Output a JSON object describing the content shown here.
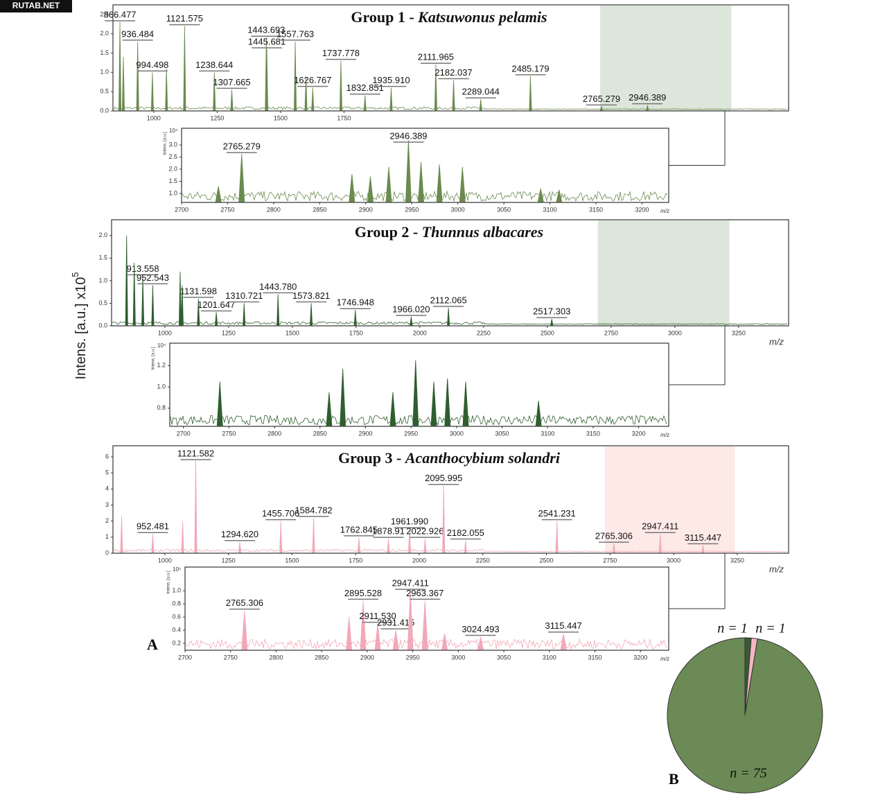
{
  "watermark": "RUTAB.NET",
  "y_axis_label": {
    "text": "Intens. [a.u.] x10",
    "exponent": "5"
  },
  "panel_label_a": "A",
  "panel_label_b": "B",
  "panels": [
    {
      "title": "Group 1 - ",
      "species": "Katsuwonus pelamis",
      "color": "#6b8a4e",
      "main": {
        "xlim": [
          839,
          3503
        ],
        "ylim": [
          0,
          2.75
        ],
        "xticks": [
          1000,
          1250,
          1500,
          1750
        ],
        "yticks": [
          {
            "value": 0,
            "label": "0.0"
          },
          {
            "value": 0.5,
            "label": "0.5"
          },
          {
            "value": 1,
            "label": "1.0"
          },
          {
            "value": 1.5,
            "label": "1.5"
          },
          {
            "value": 2,
            "label": "2.0"
          },
          {
            "value": 2.5,
            "label": "2.5"
          }
        ],
        "shade": [
          2760,
          3277
        ],
        "shade_color": "#dde6da",
        "peaks": [
          {
            "mz": 866.477,
            "label": "866.477",
            "h": 2.3
          },
          {
            "mz": 936.484,
            "label": "936.484",
            "h": 1.8
          },
          {
            "mz": 994.498,
            "label": "994.498",
            "h": 1.0
          },
          {
            "mz": 1121.575,
            "label": "1121.575",
            "h": 2.2
          },
          {
            "mz": 1238.644,
            "label": "1238.644",
            "h": 1.0
          },
          {
            "mz": 1307.665,
            "label": "1307.665",
            "h": 0.55
          },
          {
            "mz": 1443.693,
            "label": "1443.693",
            "h": 1.9
          },
          {
            "mz": 1445.681,
            "label": "1445.681",
            "h": 1.6
          },
          {
            "mz": 1557.763,
            "label": "1557.763",
            "h": 1.8
          },
          {
            "mz": 1626.767,
            "label": "1626.767",
            "h": 0.6
          },
          {
            "mz": 1737.778,
            "label": "1737.778",
            "h": 1.3
          },
          {
            "mz": 1832.851,
            "label": "1832.851",
            "h": 0.4
          },
          {
            "mz": 1935.91,
            "label": "1935.910",
            "h": 0.6
          },
          {
            "mz": 2111.965,
            "label": "2111.965",
            "h": 1.2
          },
          {
            "mz": 2182.037,
            "label": "2182.037",
            "h": 0.8
          },
          {
            "mz": 2289.044,
            "label": "2289.044",
            "h": 0.3
          },
          {
            "mz": 2485.179,
            "label": "2485.179",
            "h": 0.9
          },
          {
            "mz": 2765.279,
            "label": "2765.279",
            "h": 0.12
          },
          {
            "mz": 2946.389,
            "label": "2946.389",
            "h": 0.15
          },
          {
            "mz": 880,
            "h": 1.4
          },
          {
            "mz": 1050,
            "h": 1.1
          },
          {
            "mz": 1600,
            "h": 0.9
          }
        ]
      },
      "inset": {
        "y_label": "Intens. [a.u.]",
        "scale_label": "10⁴",
        "x_unit": "m/z",
        "xlim": [
          2700,
          3229
        ],
        "ylim": [
          0.63,
          3.69
        ],
        "xticks": [
          2700,
          2750,
          2800,
          2850,
          2900,
          2950,
          3000,
          3050,
          3100,
          3150,
          3200
        ],
        "yticks": [
          {
            "value": 1,
            "label": "1.0"
          },
          1.5,
          {
            "value": 2,
            "label": "2.0"
          },
          2.5,
          {
            "value": 3,
            "label": "3.0"
          }
        ],
        "peaks": [
          {
            "mz": 2765.279,
            "label": "2765.279",
            "h": 2.63
          },
          {
            "mz": 2946.389,
            "label": "2946.389",
            "h": 3.2
          },
          {
            "mz": 2740,
            "h": 1.3
          },
          {
            "mz": 2885,
            "h": 1.8
          },
          {
            "mz": 2905,
            "h": 1.7
          },
          {
            "mz": 2925,
            "h": 2.1
          },
          {
            "mz": 2960,
            "h": 2.3
          },
          {
            "mz": 2980,
            "h": 2.2
          },
          {
            "mz": 3005,
            "h": 2.1
          },
          {
            "mz": 3090,
            "h": 1.2
          },
          {
            "mz": 3110,
            "h": 1.15
          }
        ]
      }
    },
    {
      "title": "Group 2 - ",
      "species": "Thunnus albacares",
      "color": "#2f5e2f",
      "main": {
        "x_unit": "m/z",
        "xlim": [
          791,
          3446
        ],
        "ylim": [
          0,
          2.35
        ],
        "xticks": [
          1000,
          1250,
          1500,
          1750,
          2000,
          2250,
          2500,
          2750,
          3000,
          3250
        ],
        "yticks": [
          {
            "value": 0,
            "label": "0.0"
          },
          0.5,
          {
            "value": 1,
            "label": "1.0"
          },
          1.5,
          {
            "value": 2,
            "label": "2.0"
          }
        ],
        "shade": [
          2698,
          3214
        ],
        "shade_color": "#dde6da",
        "peaks": [
          {
            "mz": 913.558,
            "label": "913.558",
            "h": 1.1
          },
          {
            "mz": 952.543,
            "label": "952.543",
            "h": 0.9
          },
          {
            "mz": 1131.598,
            "label": "1131.598",
            "h": 0.6
          },
          {
            "mz": 1201.647,
            "label": "1201.647",
            "h": 0.3
          },
          {
            "mz": 1310.721,
            "label": "1310.721",
            "h": 0.5
          },
          {
            "mz": 1443.78,
            "label": "1443.780",
            "h": 0.7
          },
          {
            "mz": 1573.821,
            "label": "1573.821",
            "h": 0.5
          },
          {
            "mz": 1746.948,
            "label": "1746.948",
            "h": 0.35
          },
          {
            "mz": 1966.02,
            "label": "1966.020",
            "h": 0.2
          },
          {
            "mz": 2112.065,
            "label": "2112.065",
            "h": 0.4
          },
          {
            "mz": 2517.303,
            "label": "2517.303",
            "h": 0.15
          },
          {
            "mz": 850,
            "h": 2.0
          },
          {
            "mz": 880,
            "h": 1.4
          },
          {
            "mz": 1060,
            "h": 1.2
          },
          {
            "mz": 1068,
            "h": 0.9
          }
        ]
      },
      "inset": {
        "y_label": "Intens. [a.u.]",
        "scale_label": "10⁴",
        "x_unit": "m/z",
        "xlim": [
          2685,
          3233
        ],
        "ylim": [
          0.63,
          1.41
        ],
        "xticks": [
          2700,
          2750,
          2800,
          2850,
          2900,
          2950,
          3000,
          3050,
          3100,
          3150,
          3200
        ],
        "yticks": [
          0.8,
          {
            "value": 1,
            "label": "1.0"
          },
          1.2
        ],
        "peaks": [
          {
            "mz": 2740,
            "h": 1.05
          },
          {
            "mz": 2860,
            "h": 0.95
          },
          {
            "mz": 2875,
            "h": 1.17
          },
          {
            "mz": 2930,
            "h": 0.95
          },
          {
            "mz": 2955,
            "h": 1.25
          },
          {
            "mz": 2975,
            "h": 1.05
          },
          {
            "mz": 2990,
            "h": 1.08
          },
          {
            "mz": 3010,
            "h": 1.05
          },
          {
            "mz": 3090,
            "h": 0.87
          }
        ]
      }
    },
    {
      "title": "Group 3 - ",
      "species": "Acanthocybium solandri",
      "color": "#f2a8b8",
      "main": {
        "x_unit": "m/z",
        "xlim": [
          796,
          3452
        ],
        "ylim": [
          0,
          6.69
        ],
        "xticks": [
          1000,
          1250,
          1500,
          1750,
          2000,
          2250,
          2500,
          2750,
          3000,
          3250
        ],
        "yticks": [
          0,
          1,
          2,
          3,
          4,
          5,
          6
        ],
        "shade": [
          2730,
          3240
        ],
        "shade_color": "#fde9e6",
        "peaks": [
          {
            "mz": 952.481,
            "label": "952.481",
            "h": 1.2
          },
          {
            "mz": 1121.582,
            "label": "1121.582",
            "h": 5.8
          },
          {
            "mz": 1294.62,
            "label": "1294.620",
            "h": 0.7
          },
          {
            "mz": 1455.706,
            "label": "1455.706",
            "h": 2.0
          },
          {
            "mz": 1584.782,
            "label": "1584.782",
            "h": 2.2
          },
          {
            "mz": 1762.845,
            "label": "1762.845",
            "h": 1.0
          },
          {
            "mz": 1878.91,
            "label": "1878.91",
            "h": 0.9
          },
          {
            "mz": 1961.99,
            "label": "1961.990",
            "h": 1.5
          },
          {
            "mz": 2022.926,
            "label": "2022.926",
            "h": 0.9
          },
          {
            "mz": 2095.995,
            "label": "2095.995",
            "h": 4.2
          },
          {
            "mz": 2182.055,
            "label": "2182.055",
            "h": 0.8
          },
          {
            "mz": 2541.231,
            "label": "2541.231",
            "h": 2.0
          },
          {
            "mz": 2765.306,
            "label": "2765.306",
            "h": 0.6
          },
          {
            "mz": 2947.411,
            "label": "2947.411",
            "h": 1.2
          },
          {
            "mz": 3115.447,
            "label": "3115.447",
            "h": 0.5
          },
          {
            "mz": 830,
            "h": 2.3
          },
          {
            "mz": 1070,
            "h": 2.0
          }
        ]
      },
      "inset": {
        "y_label": "Intens. [a.u.]",
        "scale_label": "10⁵",
        "x_unit": "m/z",
        "xlim": [
          2700,
          3231
        ],
        "ylim": [
          0.095,
          1.36
        ],
        "xticks": [
          2700,
          2750,
          2800,
          2850,
          2900,
          2950,
          3000,
          3050,
          3100,
          3150,
          3200
        ],
        "yticks": [
          0.2,
          0.4,
          0.6,
          0.8,
          {
            "value": 1,
            "label": "1.0"
          }
        ],
        "peaks": [
          {
            "mz": 2765.306,
            "label": "2765.306",
            "h": 0.7
          },
          {
            "mz": 2895.528,
            "label": "2895.528",
            "h": 0.85
          },
          {
            "mz": 2911.53,
            "label": "2911.530",
            "h": 0.5
          },
          {
            "mz": 2931.415,
            "label": "2931.415",
            "h": 0.4
          },
          {
            "mz": 2947.411,
            "label": "2947.411",
            "h": 1.0
          },
          {
            "mz": 2963.367,
            "label": "2963.367",
            "h": 0.85
          },
          {
            "mz": 3024.493,
            "label": "3024.493",
            "h": 0.3
          },
          {
            "mz": 3115.447,
            "label": "3115.447",
            "h": 0.35
          },
          {
            "mz": 2880,
            "h": 0.6
          },
          {
            "mz": 2985,
            "h": 0.35
          }
        ]
      }
    }
  ],
  "pie": {
    "values": [
      1,
      1,
      75
    ],
    "value_labels": [
      "n = 1",
      "n = 1",
      "n = 75"
    ],
    "colors": [
      "#3a5a36",
      "#f4b6c2",
      "#6b8a55"
    ]
  }
}
